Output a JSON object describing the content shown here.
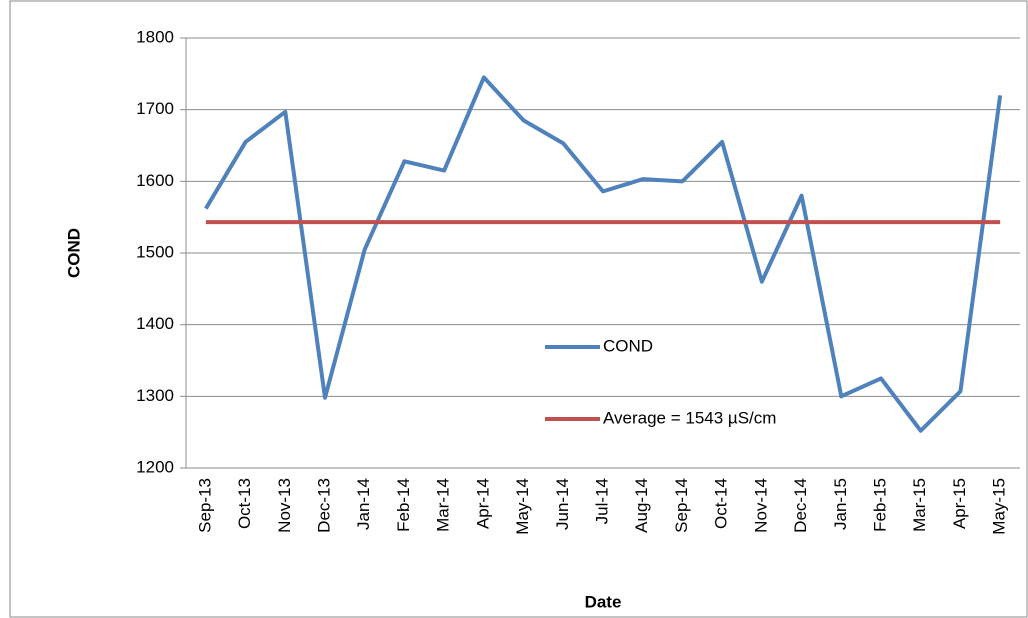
{
  "chart_data": {
    "type": "line",
    "x_label": "Date",
    "y_label": "COND",
    "categories": [
      "Sep-13",
      "Oct-13",
      "Nov-13",
      "Dec-13",
      "Jan-14",
      "Feb-14",
      "Mar-14",
      "Apr-14",
      "May-14",
      "Jun-14",
      "Jul-14",
      "Aug-14",
      "Sep-14",
      "Oct-14",
      "Nov-14",
      "Dec-14",
      "Jan-15",
      "Feb-15",
      "Mar-15",
      "Apr-15",
      "May-15"
    ],
    "series": [
      {
        "name": "COND",
        "color": "#4f81bd",
        "values": [
          1562,
          1655,
          1697,
          1298,
          1505,
          1628,
          1615,
          1745,
          1685,
          1653,
          1586,
          1603,
          1600,
          1655,
          1460,
          1580,
          1300,
          1325,
          1252,
          1307,
          1720
        ]
      },
      {
        "name": "Average = 1543  µS/cm",
        "color": "#c0504d",
        "values": [
          1543,
          1543,
          1543,
          1543,
          1543,
          1543,
          1543,
          1543,
          1543,
          1543,
          1543,
          1543,
          1543,
          1543,
          1543,
          1543,
          1543,
          1543,
          1543,
          1543,
          1543
        ]
      }
    ],
    "ylim": [
      1200,
      1800
    ],
    "yticks": [
      1200,
      1300,
      1400,
      1500,
      1600,
      1700,
      1800
    ],
    "grid": true
  }
}
